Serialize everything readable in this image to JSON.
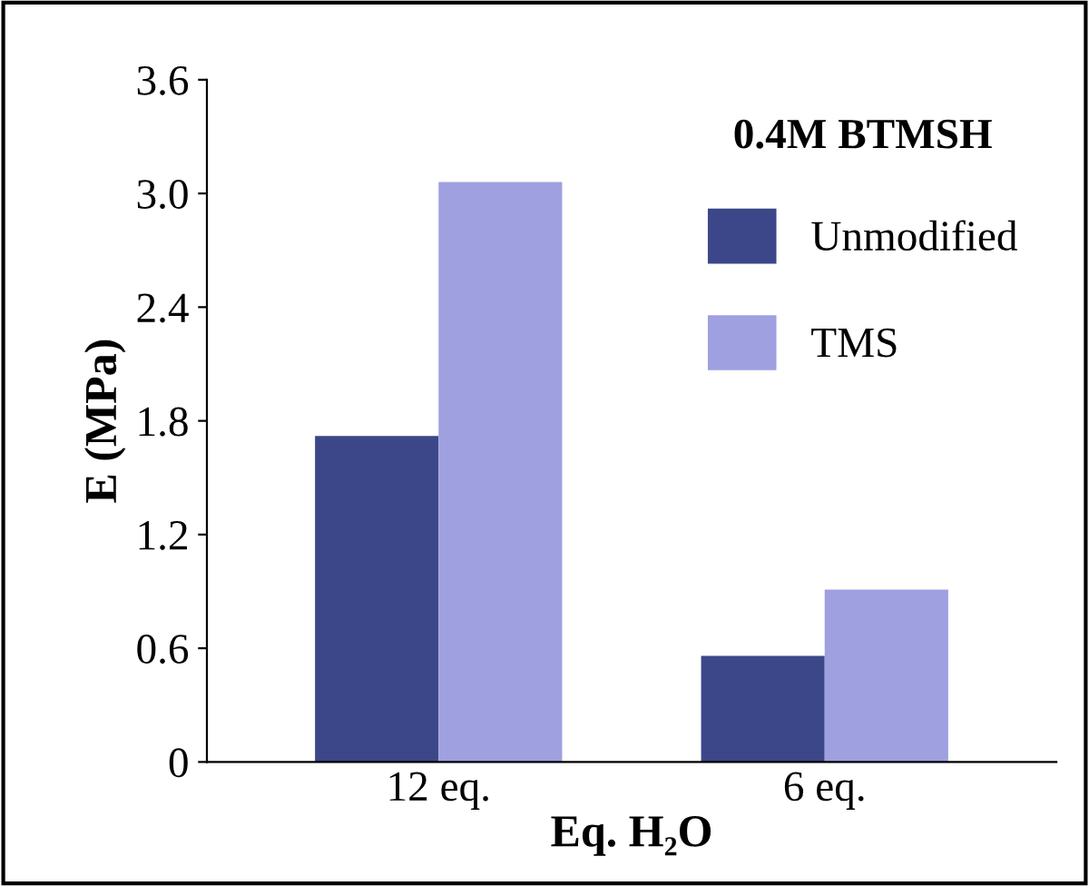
{
  "chart_data": {
    "type": "bar",
    "xlabel": "Eq. H₂O",
    "ylabel": "E (MPa)",
    "legend_title": "0.4M BTMSH",
    "categories": [
      "12 eq.",
      "6 eq."
    ],
    "series": [
      {
        "name": "Unmodified",
        "color": "#3b4788",
        "values": [
          1.72,
          0.56
        ]
      },
      {
        "name": "TMS",
        "color": "#9ea0e0",
        "values": [
          3.06,
          0.91
        ]
      }
    ],
    "ylim": [
      0,
      3.6
    ],
    "yticks": [
      {
        "value": 0,
        "label": "0"
      },
      0.6,
      1.2,
      1.8,
      2.4,
      {
        "value": 3,
        "label": "3.0"
      },
      3.6
    ],
    "grid": false,
    "legend": "top right"
  }
}
